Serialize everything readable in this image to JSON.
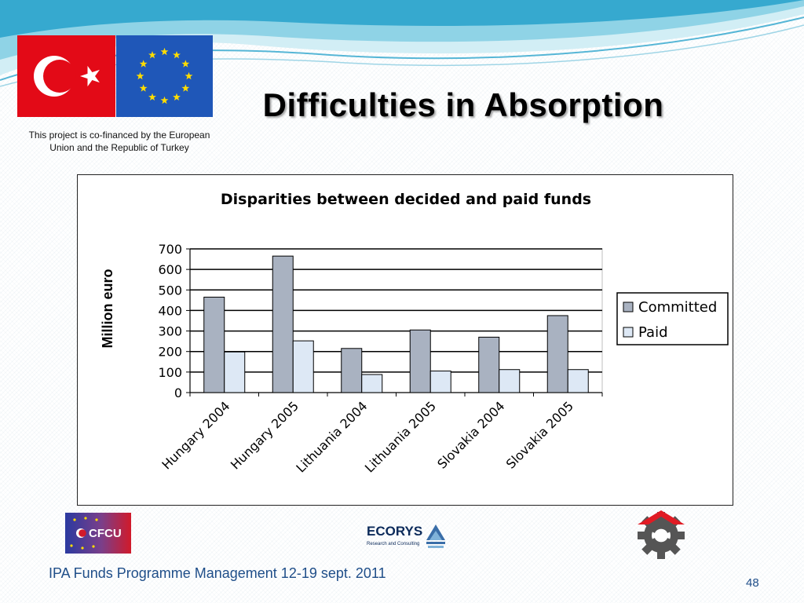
{
  "slide": {
    "title": "Difficulties in Absorption",
    "caption": "This project is co-financed by the European Union and the Republic of Turkey",
    "footer": "IPA Funds Programme Management 12-19 sept. 2011",
    "page_number": "48"
  },
  "logos": {
    "cfcu_text": "CFCU",
    "ecorys_name": "ECORYS",
    "ecorys_tagline": "Research and Consulting"
  },
  "colors": {
    "committed": "#a9b2c1",
    "paid": "#dde8f5",
    "turkey_red": "#e30a17",
    "eu_blue": "#1f57b8",
    "eu_star": "#ffdd00",
    "footer_blue": "#1f4e89"
  },
  "chart_data": {
    "type": "bar",
    "title": "Disparities between decided and paid funds",
    "ylabel": "Million euro",
    "xlabel": "",
    "categories": [
      "Hungary 2004",
      "Hungary 2005",
      "Lithuania 2004",
      "Lithuania 2005",
      "Slovakia 2004",
      "Slovakia 2005"
    ],
    "series": [
      {
        "name": "Committed",
        "values": [
          465,
          665,
          215,
          305,
          270,
          375
        ]
      },
      {
        "name": "Paid",
        "values": [
          198,
          252,
          88,
          105,
          112,
          112
        ]
      }
    ],
    "ylim": [
      0,
      700
    ],
    "yticks": [
      0,
      100,
      200,
      300,
      400,
      500,
      600,
      700
    ],
    "grid": true,
    "legend_position": "right"
  }
}
